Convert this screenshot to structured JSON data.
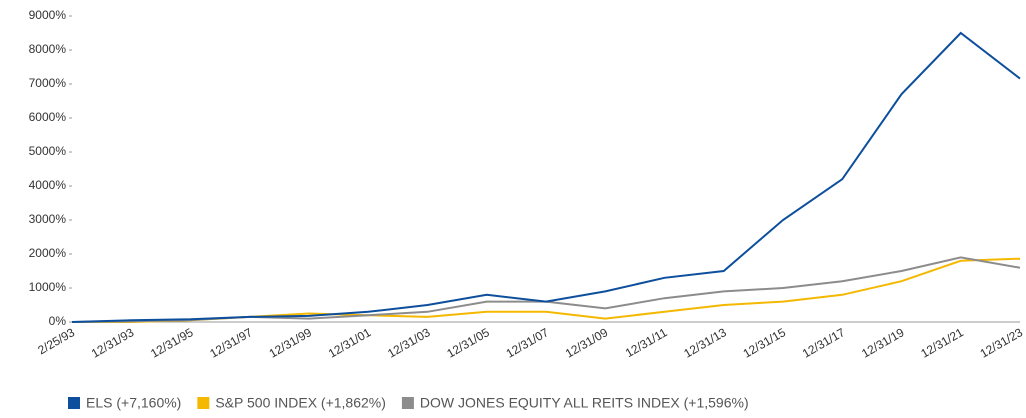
{
  "chart_data": {
    "type": "line",
    "categories": [
      "2/25/93",
      "12/31/93",
      "12/31/95",
      "12/31/97",
      "12/31/99",
      "12/31/01",
      "12/31/03",
      "12/31/05",
      "12/31/07",
      "12/31/09",
      "12/31/11",
      "12/31/13",
      "12/31/15",
      "12/31/17",
      "12/31/19",
      "12/31/21",
      "12/31/23"
    ],
    "series": [
      {
        "name": "ELS  (+7,160%)",
        "color": "#0d4f9c",
        "values": [
          0,
          50,
          80,
          150,
          180,
          300,
          500,
          800,
          600,
          900,
          1300,
          1500,
          3000,
          4200,
          6700,
          8500,
          7160
        ]
      },
      {
        "name": "S&P 500 INDEX (+1,862%)",
        "color": "#f5b800",
        "values": [
          0,
          0,
          50,
          150,
          250,
          200,
          150,
          300,
          300,
          100,
          300,
          500,
          600,
          800,
          1200,
          1800,
          1862
        ]
      },
      {
        "name": "DOW JONES EQUITY ALL REITS INDEX (+1,596%)",
        "color": "#8c8c8c",
        "values": [
          0,
          20,
          60,
          150,
          100,
          200,
          300,
          600,
          600,
          400,
          700,
          900,
          1000,
          1200,
          1500,
          1900,
          1596
        ]
      }
    ],
    "ylim": [
      0,
      9000
    ],
    "yticks": [
      {
        "value": 0,
        "label": "0%"
      },
      {
        "value": 1000,
        "label": "1000%"
      },
      {
        "value": 2000,
        "label": "2000%"
      },
      {
        "value": 3000,
        "label": "3000%"
      },
      {
        "value": 4000,
        "label": "4000%"
      },
      {
        "value": 5000,
        "label": "5000%"
      },
      {
        "value": 6000,
        "label": "6000%"
      },
      {
        "value": 7000,
        "label": "7000%"
      },
      {
        "value": 8000,
        "label": "8000%"
      },
      {
        "value": 9000,
        "label": "9000%"
      }
    ],
    "grid": false,
    "legend": "bottom"
  }
}
